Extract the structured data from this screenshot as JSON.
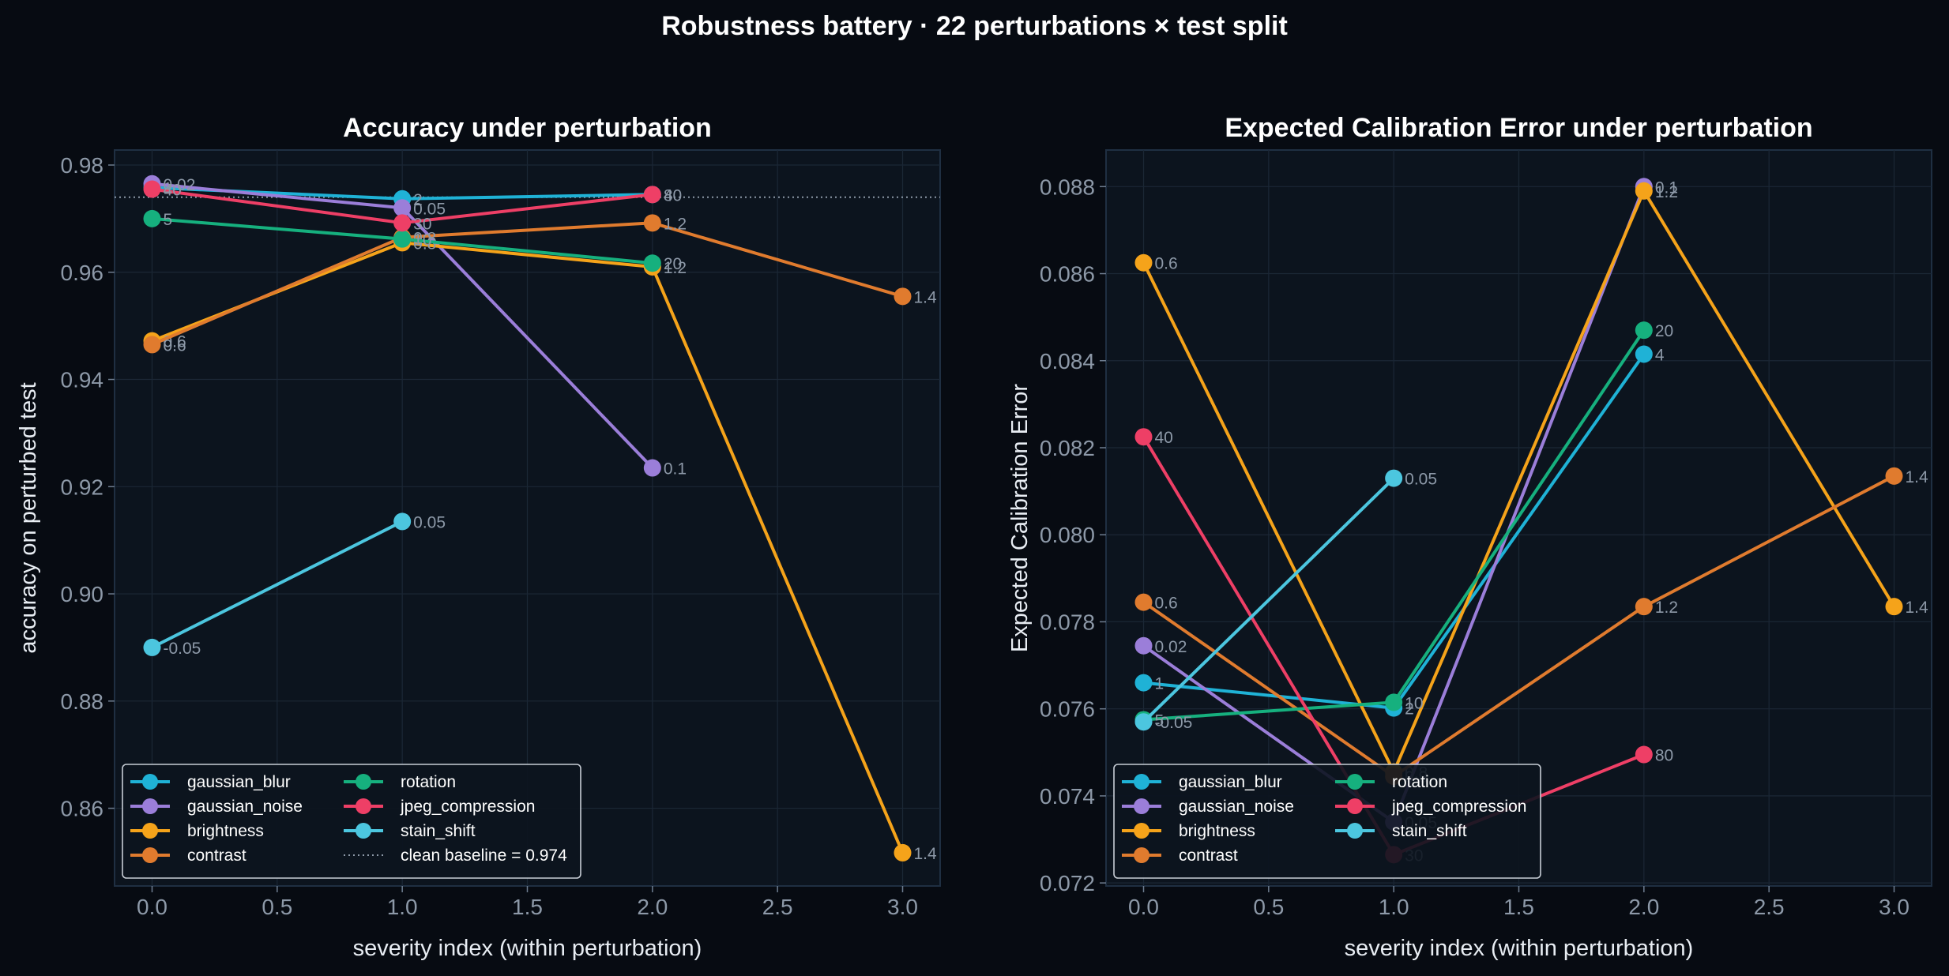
{
  "figure": {
    "suptitle": "Robustness battery · 22 perturbations × test split"
  },
  "colors": {
    "gaussian_blur": "#1fb2d6",
    "gaussian_noise": "#9b7ed9",
    "brightness": "#f5a31a",
    "contrast": "#e07b2e",
    "rotation": "#16b07e",
    "jpeg_compression": "#ee3f66",
    "stain_shift": "#4cc6df",
    "baseline": "#8d99a8"
  },
  "chart_data": [
    {
      "type": "line",
      "title": "Accuracy under perturbation",
      "xlabel": "severity index (within perturbation)",
      "ylabel": "accuracy on perturbed test",
      "xlim": [
        -0.15,
        3.15
      ],
      "ylim": [
        0.8455,
        0.9828
      ],
      "xticks": [
        "0.0",
        "0.5",
        "1.0",
        "1.5",
        "2.0",
        "2.5",
        "3.0"
      ],
      "yticks": [
        "0.86",
        "0.88",
        "0.90",
        "0.92",
        "0.94",
        "0.96",
        "0.98"
      ],
      "grid": true,
      "legend_position": "lower-left",
      "baseline": {
        "value": 0.974,
        "label": "clean baseline = 0.974"
      },
      "series": [
        {
          "name": "gaussian_blur",
          "x": [
            0,
            1,
            2
          ],
          "y": [
            0.9758,
            0.9737,
            0.9745
          ],
          "labels": [
            "1",
            "2",
            "4"
          ]
        },
        {
          "name": "gaussian_noise",
          "x": [
            0,
            1,
            2
          ],
          "y": [
            0.9765,
            0.972,
            0.9235
          ],
          "labels": [
            "0.02",
            "0.05",
            "0.1"
          ]
        },
        {
          "name": "brightness",
          "x": [
            0,
            1,
            2,
            3
          ],
          "y": [
            0.9472,
            0.9655,
            0.961,
            0.8517
          ],
          "labels": [
            "0.6",
            "0.8",
            "1.2",
            "1.4"
          ]
        },
        {
          "name": "contrast",
          "x": [
            0,
            1,
            2,
            3
          ],
          "y": [
            0.9465,
            0.9665,
            0.9692,
            0.9555
          ],
          "labels": [
            "0.6",
            "0.8",
            "1.2",
            "1.4"
          ]
        },
        {
          "name": "rotation",
          "x": [
            0,
            1,
            2
          ],
          "y": [
            0.97,
            0.9662,
            0.9617
          ],
          "labels": [
            "5",
            "10",
            "20"
          ]
        },
        {
          "name": "jpeg_compression",
          "x": [
            0,
            1,
            2
          ],
          "y": [
            0.9755,
            0.9692,
            0.9745
          ],
          "labels": [
            "40",
            "30",
            "80"
          ]
        },
        {
          "name": "stain_shift",
          "x": [
            0,
            1
          ],
          "y": [
            0.89,
            0.9135
          ],
          "labels": [
            "-0.05",
            "0.05"
          ]
        }
      ]
    },
    {
      "type": "line",
      "title": "Expected Calibration Error under perturbation",
      "xlabel": "severity index (within perturbation)",
      "ylabel": "Expected Calibration Error",
      "xlim": [
        -0.15,
        3.15
      ],
      "ylim": [
        0.07193,
        0.08884
      ],
      "xticks": [
        "0.0",
        "0.5",
        "1.0",
        "1.5",
        "2.0",
        "2.5",
        "3.0"
      ],
      "yticks": [
        "0.072",
        "0.074",
        "0.076",
        "0.078",
        "0.080",
        "0.082",
        "0.084",
        "0.086",
        "0.088"
      ],
      "grid": true,
      "legend_position": "lower-left",
      "series": [
        {
          "name": "gaussian_blur",
          "x": [
            0,
            1,
            2
          ],
          "y": [
            0.0766,
            0.07602,
            0.08415
          ],
          "labels": [
            "1",
            "2",
            "4"
          ]
        },
        {
          "name": "gaussian_noise",
          "x": [
            0,
            1,
            2
          ],
          "y": [
            0.07745,
            0.0734,
            0.088
          ],
          "labels": [
            "0.02",
            "0.05",
            "0.1"
          ]
        },
        {
          "name": "brightness",
          "x": [
            0,
            1,
            2,
            3
          ],
          "y": [
            0.08625,
            0.07455,
            0.0879,
            0.07835
          ],
          "labels": [
            "0.6",
            "0.8",
            "1.2",
            "1.4"
          ]
        },
        {
          "name": "contrast",
          "x": [
            0,
            1,
            2,
            3
          ],
          "y": [
            0.07845,
            0.07445,
            0.07835,
            0.08135
          ],
          "labels": [
            "0.6",
            "0.8",
            "1.2",
            "1.4"
          ]
        },
        {
          "name": "rotation",
          "x": [
            0,
            1,
            2
          ],
          "y": [
            0.07575,
            0.07615,
            0.0847
          ],
          "labels": [
            "5",
            "10",
            "20"
          ]
        },
        {
          "name": "jpeg_compression",
          "x": [
            0,
            1,
            2
          ],
          "y": [
            0.08225,
            0.07265,
            0.07495
          ],
          "labels": [
            "40",
            "30",
            "80"
          ]
        },
        {
          "name": "stain_shift",
          "x": [
            0,
            1
          ],
          "y": [
            0.0757,
            0.0813
          ],
          "labels": [
            "-0.05",
            "0.05"
          ]
        }
      ]
    }
  ]
}
